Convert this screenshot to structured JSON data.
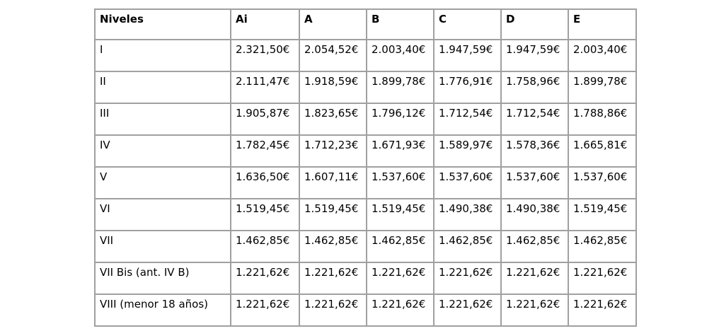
{
  "page": {
    "background": "#ffffff"
  },
  "table": {
    "name": "salary-levels-table",
    "border_color": "#a0a0a0",
    "text_color": "#000000",
    "currency_symbol": "€",
    "columns": [
      "Niveles",
      "Ai",
      "A",
      "B",
      "C",
      "D",
      "E"
    ],
    "rows": [
      {
        "label": "I",
        "values": [
          "2.321,50€",
          "2.054,52€",
          "2.003,40€",
          "1.947,59€",
          "1.947,59€",
          "2.003,40€"
        ]
      },
      {
        "label": "II",
        "values": [
          "2.111,47€",
          "1.918,59€",
          "1.899,78€",
          "1.776,91€",
          "1.758,96€",
          "1.899,78€"
        ]
      },
      {
        "label": "III",
        "values": [
          "1.905,87€",
          "1.823,65€",
          "1.796,12€",
          "1.712,54€",
          "1.712,54€",
          "1.788,86€"
        ]
      },
      {
        "label": "IV",
        "values": [
          "1.782,45€",
          "1.712,23€",
          "1.671,93€",
          "1.589,97€",
          "1.578,36€",
          "1.665,81€"
        ]
      },
      {
        "label": "V",
        "values": [
          "1.636,50€",
          "1.607,11€",
          "1.537,60€",
          "1.537,60€",
          "1.537,60€",
          "1.537,60€"
        ]
      },
      {
        "label": "VI",
        "values": [
          "1.519,45€",
          "1.519,45€",
          "1.519,45€",
          "1.490,38€",
          "1.490,38€",
          "1.519,45€"
        ]
      },
      {
        "label": "VII",
        "values": [
          "1.462,85€",
          "1.462,85€",
          "1.462,85€",
          "1.462,85€",
          "1.462,85€",
          "1.462,85€"
        ]
      },
      {
        "label": "VII Bis (ant. IV B)",
        "values": [
          "1.221,62€",
          "1.221,62€",
          "1.221,62€",
          "1.221,62€",
          "1.221,62€",
          "1.221,62€"
        ]
      },
      {
        "label": "VIII (menor 18 años)",
        "values": [
          "1.221,62€",
          "1.221,62€",
          "1.221,62€",
          "1.221,62€",
          "1.221,62€",
          "1.221,62€"
        ]
      }
    ]
  }
}
